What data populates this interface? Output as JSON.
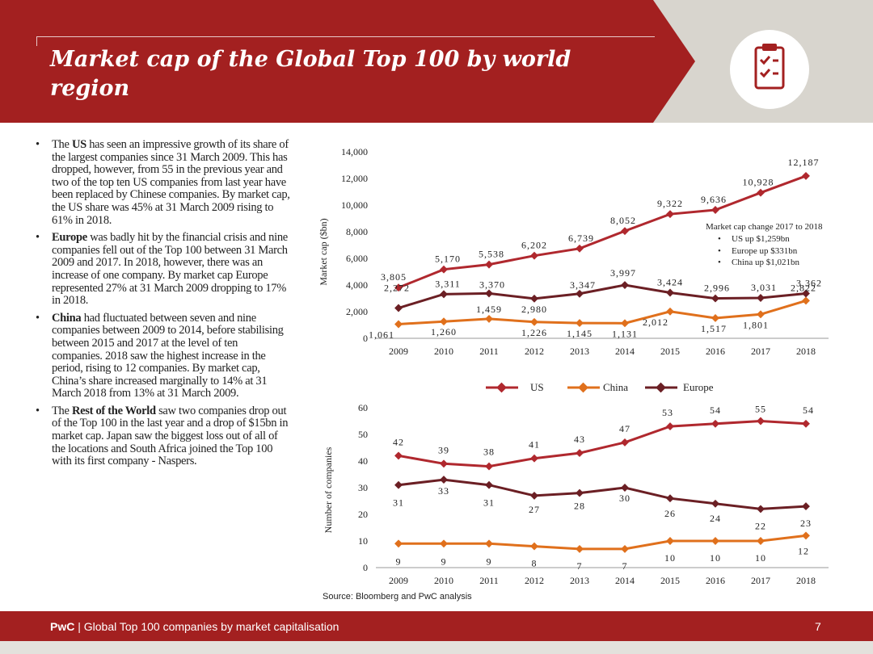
{
  "header": {
    "title": "Market cap of the Global Top 100 by world region",
    "icon": "clipboard-checklist-icon"
  },
  "colors": {
    "brand_red": "#a32020",
    "us": "#b0282e",
    "china": "#e0701c",
    "europe": "#6b1f24",
    "grey_band": "#d8d5ce"
  },
  "bullets": [
    {
      "lead": "The ",
      "strong": "US",
      "text": " has seen an impressive growth of its share of the largest companies since 31 March 2009. This has dropped, however, from 55 in the previous year and two of the top ten US companies from last year have been replaced by Chinese companies. By market cap, the US share was 45% at 31 March 2009 rising to 61% in 2018."
    },
    {
      "lead": "",
      "strong": "Europe",
      "text": " was badly hit by the financial crisis and nine companies fell out of the Top 100 between 31 March 2009 and 2017. In 2018, however, there was an increase of one company. By market cap Europe represented 27% at 31 March 2009 dropping to 17% in 2018."
    },
    {
      "lead": "",
      "strong": "China",
      "text": " had fluctuated between seven and nine companies between 2009 to 2014, before stabilising between 2015 and 2017 at the level of ten companies. 2018 saw the highest increase in the period, rising to 12 companies. By market cap, China’s share increased marginally to 14% at 31 March 2018 from 13% at 31 March 2009."
    },
    {
      "lead": "The ",
      "strong": "Rest of the World",
      "text": " saw two companies drop out of the Top 100 in the last year and a drop of $15bn in market cap. Japan saw the biggest loss out of all of the locations and South Africa joined the Top 100 with its first company - Naspers."
    }
  ],
  "chart_data": [
    {
      "type": "line",
      "ylabel": "Market cap ($bn)",
      "ylim": [
        0,
        14000
      ],
      "yticks": [
        "0",
        "2,000",
        "4,000",
        "6,000",
        "8,000",
        "10,000",
        "12,000",
        "14,000"
      ],
      "ytick_values": [
        0,
        2000,
        4000,
        6000,
        8000,
        10000,
        12000,
        14000
      ],
      "categories": [
        "2009",
        "2010",
        "2011",
        "2012",
        "2013",
        "2014",
        "2015",
        "2016",
        "2017",
        "2018"
      ],
      "series": [
        {
          "name": "US",
          "values": [
            3805,
            5170,
            5538,
            6202,
            6739,
            8052,
            9322,
            9636,
            10928,
            12187
          ],
          "labels": [
            "3,805",
            "5,170",
            "5,538",
            "6,202",
            "6,739",
            "8,052",
            "9,322",
            "9,636",
            "10,928",
            "12,187"
          ]
        },
        {
          "name": "China",
          "values": [
            1061,
            1260,
            1459,
            1226,
            1145,
            1131,
            2012,
            1517,
            1801,
            2822
          ],
          "labels": [
            "1,061",
            "1,260",
            "1,459",
            "1,226",
            "1,145",
            "1,131",
            "2,012",
            "1,517",
            "1,801",
            "2,822"
          ]
        },
        {
          "name": "Europe",
          "values": [
            2272,
            3311,
            3370,
            2980,
            3347,
            3997,
            3424,
            2996,
            3031,
            3362
          ],
          "labels": [
            "2,272",
            "3,311",
            "3,370",
            "2,980",
            "3,347",
            "3,997",
            "3,424",
            "2,996",
            "3,031",
            "3,362"
          ]
        }
      ],
      "annotation": {
        "title": "Market cap change 2017 to 2018",
        "items": [
          "US up $1,259bn",
          "Europe up $331bn",
          "China up $1,021bn"
        ]
      }
    },
    {
      "type": "line",
      "ylabel": "Number of companies",
      "ylim": [
        0,
        60
      ],
      "yticks": [
        "0",
        "10",
        "20",
        "30",
        "40",
        "50",
        "60"
      ],
      "ytick_values": [
        0,
        10,
        20,
        30,
        40,
        50,
        60
      ],
      "categories": [
        "2009",
        "2010",
        "2011",
        "2012",
        "2013",
        "2014",
        "2015",
        "2016",
        "2017",
        "2018"
      ],
      "series": [
        {
          "name": "US",
          "values": [
            42,
            39,
            38,
            41,
            43,
            47,
            53,
            54,
            55,
            54
          ],
          "labels": [
            "42",
            "39",
            "38",
            "41",
            "43",
            "47",
            "53",
            "54",
            "55",
            "54"
          ]
        },
        {
          "name": "China",
          "values": [
            9,
            9,
            9,
            8,
            7,
            7,
            10,
            10,
            10,
            12
          ],
          "labels": [
            "9",
            "9",
            "9",
            "8",
            "7",
            "7",
            "10",
            "10",
            "10",
            "12"
          ]
        },
        {
          "name": "Europe",
          "values": [
            31,
            33,
            31,
            27,
            28,
            30,
            26,
            24,
            22,
            23
          ],
          "labels": [
            "31",
            "33",
            "31",
            "27",
            "28",
            "30",
            "26",
            "24",
            "22",
            "23"
          ]
        }
      ]
    }
  ],
  "legend": [
    "US",
    "China",
    "Europe"
  ],
  "source": "Source: Bloomberg and PwC analysis",
  "footer": {
    "brand": "PwC",
    "text": " | Global Top 100 companies by market capitalisation",
    "page": "7"
  }
}
